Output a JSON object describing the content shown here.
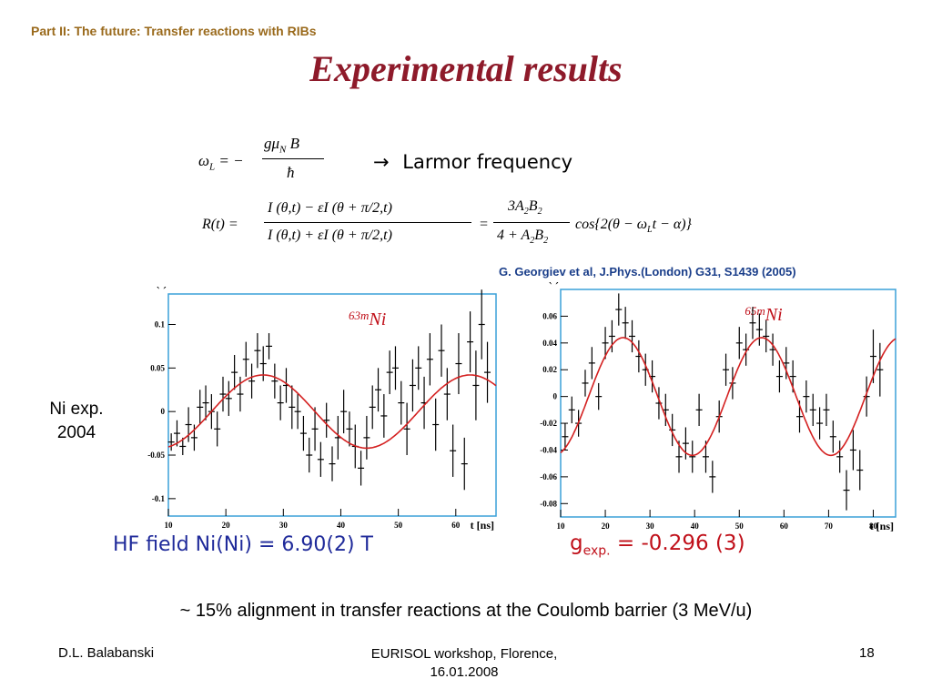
{
  "header": {
    "part_title": "Part II: The future: Transfer reactions with RIBs",
    "title": "Experimental results"
  },
  "formulas": {
    "larmor_label": "Larmor frequency",
    "larmor_arrow": "→"
  },
  "reference": "G. Georgiev et al, J.Phys.(London) G31, S1439 (2005)",
  "side_note": {
    "line1": "Ni exp.",
    "line2": "2004"
  },
  "hf_field": "HF field Ni(Ni) = 6.90(2) T",
  "g_exp": {
    "symbol": "g",
    "subscript": "exp.",
    "value": "= -0.296 (3)"
  },
  "conclusion": "~ 15% alignment in transfer reactions at the Coulomb barrier (3 MeV/u)",
  "footer": {
    "author": "D.L. Balabanski",
    "event_line1": "EURISOL workshop, Florence,",
    "event_line2": "16.01.2008",
    "page": "18"
  },
  "colors": {
    "title": "#8e1a2a",
    "part_title": "#9a6a1c",
    "fit_curve": "#d42020",
    "frame": "#3aa0d8",
    "reference": "#1a3e8a"
  },
  "chart_data": [
    {
      "type": "scatter",
      "isotope_mass": "63m",
      "isotope_element": "Ni",
      "ylabel": "R(t)",
      "xlabel": "t [ns]",
      "xlim": [
        10,
        67
      ],
      "ylim": [
        -0.12,
        0.135
      ],
      "x_ticks": [
        10,
        20,
        30,
        40,
        50,
        60
      ],
      "y_ticks": [
        -0.1,
        -0.05,
        0,
        0.05,
        0.1
      ],
      "y_tick_labels": [
        "-0.1",
        "-0.05",
        "0",
        "0.05",
        "0.1"
      ],
      "fit": {
        "amplitude": 0.042,
        "period_ns": 36,
        "peak_ns": 26.5
      },
      "points": [
        {
          "x": 10.5,
          "y": -0.035,
          "e": 0.01
        },
        {
          "x": 11.5,
          "y": -0.025,
          "e": 0.015
        },
        {
          "x": 12.5,
          "y": -0.04,
          "e": 0.01
        },
        {
          "x": 13.5,
          "y": -0.015,
          "e": 0.02
        },
        {
          "x": 14.5,
          "y": -0.03,
          "e": 0.015
        },
        {
          "x": 15.5,
          "y": 0.005,
          "e": 0.02
        },
        {
          "x": 16.5,
          "y": 0.01,
          "e": 0.02
        },
        {
          "x": 17.5,
          "y": 0.0,
          "e": 0.02
        },
        {
          "x": 18.5,
          "y": -0.02,
          "e": 0.02
        },
        {
          "x": 19.5,
          "y": 0.02,
          "e": 0.02
        },
        {
          "x": 20.5,
          "y": 0.015,
          "e": 0.02
        },
        {
          "x": 21.5,
          "y": 0.045,
          "e": 0.02
        },
        {
          "x": 22.5,
          "y": 0.02,
          "e": 0.02
        },
        {
          "x": 23.5,
          "y": 0.06,
          "e": 0.02
        },
        {
          "x": 24.5,
          "y": 0.035,
          "e": 0.02
        },
        {
          "x": 25.5,
          "y": 0.07,
          "e": 0.02
        },
        {
          "x": 26.5,
          "y": 0.055,
          "e": 0.02
        },
        {
          "x": 27.5,
          "y": 0.075,
          "e": 0.015
        },
        {
          "x": 28.5,
          "y": 0.035,
          "e": 0.02
        },
        {
          "x": 29.5,
          "y": 0.01,
          "e": 0.02
        },
        {
          "x": 30.5,
          "y": 0.03,
          "e": 0.02
        },
        {
          "x": 31.5,
          "y": 0.005,
          "e": 0.025
        },
        {
          "x": 32.5,
          "y": 0.0,
          "e": 0.02
        },
        {
          "x": 33.5,
          "y": -0.025,
          "e": 0.02
        },
        {
          "x": 34.5,
          "y": -0.05,
          "e": 0.02
        },
        {
          "x": 35.5,
          "y": -0.02,
          "e": 0.025
        },
        {
          "x": 36.5,
          "y": -0.055,
          "e": 0.02
        },
        {
          "x": 37.5,
          "y": -0.01,
          "e": 0.02
        },
        {
          "x": 38.5,
          "y": -0.06,
          "e": 0.02
        },
        {
          "x": 39.5,
          "y": -0.03,
          "e": 0.025
        },
        {
          "x": 40.5,
          "y": 0.0,
          "e": 0.025
        },
        {
          "x": 41.5,
          "y": -0.02,
          "e": 0.02
        },
        {
          "x": 42.5,
          "y": -0.04,
          "e": 0.025
        },
        {
          "x": 43.5,
          "y": -0.065,
          "e": 0.02
        },
        {
          "x": 44.5,
          "y": -0.03,
          "e": 0.025
        },
        {
          "x": 45.5,
          "y": 0.005,
          "e": 0.025
        },
        {
          "x": 46.5,
          "y": 0.025,
          "e": 0.025
        },
        {
          "x": 47.5,
          "y": -0.005,
          "e": 0.025
        },
        {
          "x": 48.5,
          "y": 0.045,
          "e": 0.025
        },
        {
          "x": 49.5,
          "y": 0.05,
          "e": 0.025
        },
        {
          "x": 50.5,
          "y": 0.01,
          "e": 0.025
        },
        {
          "x": 51.5,
          "y": -0.02,
          "e": 0.03
        },
        {
          "x": 52.5,
          "y": 0.03,
          "e": 0.03
        },
        {
          "x": 53.5,
          "y": 0.05,
          "e": 0.025
        },
        {
          "x": 54.5,
          "y": 0.01,
          "e": 0.03
        },
        {
          "x": 55.5,
          "y": 0.06,
          "e": 0.03
        },
        {
          "x": 56.5,
          "y": -0.015,
          "e": 0.03
        },
        {
          "x": 57.5,
          "y": 0.07,
          "e": 0.03
        },
        {
          "x": 58.5,
          "y": 0.02,
          "e": 0.03
        },
        {
          "x": 59.5,
          "y": -0.045,
          "e": 0.03
        },
        {
          "x": 60.5,
          "y": 0.055,
          "e": 0.035
        },
        {
          "x": 61.5,
          "y": -0.06,
          "e": 0.03
        },
        {
          "x": 62.5,
          "y": 0.08,
          "e": 0.035
        },
        {
          "x": 63.5,
          "y": 0.03,
          "e": 0.04
        },
        {
          "x": 64.5,
          "y": 0.1,
          "e": 0.04
        },
        {
          "x": 65.5,
          "y": 0.045,
          "e": 0.035
        }
      ]
    },
    {
      "type": "scatter",
      "isotope_mass": "65m",
      "isotope_element": "Ni",
      "ylabel": "R(t)",
      "xlabel": "t [ns]",
      "xlim": [
        10,
        85
      ],
      "ylim": [
        -0.09,
        0.08
      ],
      "x_ticks": [
        10,
        20,
        30,
        40,
        50,
        60,
        70,
        80
      ],
      "y_ticks": [
        -0.08,
        -0.06,
        -0.04,
        -0.02,
        0,
        0.02,
        0.04,
        0.06
      ],
      "y_tick_labels": [
        "-0.08",
        "-0.06",
        "-0.04",
        "-0.02",
        "0",
        "0.02",
        "0.04",
        "0.06"
      ],
      "fit": {
        "amplitude": 0.044,
        "period_ns": 31,
        "peak_ns": 24
      },
      "points": [
        {
          "x": 11,
          "y": -0.03,
          "e": 0.01
        },
        {
          "x": 12.5,
          "y": -0.01,
          "e": 0.01
        },
        {
          "x": 14,
          "y": -0.02,
          "e": 0.01
        },
        {
          "x": 15.5,
          "y": 0.01,
          "e": 0.01
        },
        {
          "x": 17,
          "y": 0.025,
          "e": 0.012
        },
        {
          "x": 18.5,
          "y": 0.0,
          "e": 0.01
        },
        {
          "x": 20,
          "y": 0.04,
          "e": 0.012
        },
        {
          "x": 21.5,
          "y": 0.045,
          "e": 0.012
        },
        {
          "x": 23,
          "y": 0.065,
          "e": 0.012
        },
        {
          "x": 24.5,
          "y": 0.055,
          "e": 0.012
        },
        {
          "x": 26,
          "y": 0.045,
          "e": 0.012
        },
        {
          "x": 27.5,
          "y": 0.03,
          "e": 0.012
        },
        {
          "x": 29,
          "y": 0.02,
          "e": 0.012
        },
        {
          "x": 30.5,
          "y": 0.015,
          "e": 0.012
        },
        {
          "x": 32,
          "y": -0.005,
          "e": 0.012
        },
        {
          "x": 33.5,
          "y": -0.01,
          "e": 0.012
        },
        {
          "x": 35,
          "y": -0.025,
          "e": 0.012
        },
        {
          "x": 36.5,
          "y": -0.045,
          "e": 0.012
        },
        {
          "x": 38,
          "y": -0.035,
          "e": 0.012
        },
        {
          "x": 39.5,
          "y": -0.045,
          "e": 0.012
        },
        {
          "x": 41,
          "y": -0.01,
          "e": 0.012
        },
        {
          "x": 42.5,
          "y": -0.045,
          "e": 0.012
        },
        {
          "x": 44,
          "y": -0.06,
          "e": 0.012
        },
        {
          "x": 45.5,
          "y": -0.015,
          "e": 0.012
        },
        {
          "x": 47,
          "y": 0.02,
          "e": 0.012
        },
        {
          "x": 48.5,
          "y": 0.01,
          "e": 0.012
        },
        {
          "x": 50,
          "y": 0.04,
          "e": 0.012
        },
        {
          "x": 51.5,
          "y": 0.035,
          "e": 0.012
        },
        {
          "x": 53,
          "y": 0.055,
          "e": 0.012
        },
        {
          "x": 54.5,
          "y": 0.05,
          "e": 0.012
        },
        {
          "x": 56,
          "y": 0.045,
          "e": 0.012
        },
        {
          "x": 57.5,
          "y": 0.035,
          "e": 0.012
        },
        {
          "x": 59,
          "y": 0.015,
          "e": 0.012
        },
        {
          "x": 60.5,
          "y": 0.025,
          "e": 0.012
        },
        {
          "x": 62,
          "y": 0.015,
          "e": 0.012
        },
        {
          "x": 63.5,
          "y": -0.015,
          "e": 0.012
        },
        {
          "x": 65,
          "y": 0.0,
          "e": 0.012
        },
        {
          "x": 66.5,
          "y": -0.01,
          "e": 0.012
        },
        {
          "x": 68,
          "y": -0.02,
          "e": 0.012
        },
        {
          "x": 69.5,
          "y": -0.01,
          "e": 0.012
        },
        {
          "x": 71,
          "y": -0.03,
          "e": 0.012
        },
        {
          "x": 72.5,
          "y": -0.045,
          "e": 0.012
        },
        {
          "x": 74,
          "y": -0.07,
          "e": 0.015
        },
        {
          "x": 75.5,
          "y": -0.04,
          "e": 0.015
        },
        {
          "x": 77,
          "y": -0.055,
          "e": 0.015
        },
        {
          "x": 78.5,
          "y": 0.0,
          "e": 0.015
        },
        {
          "x": 80,
          "y": 0.03,
          "e": 0.02
        },
        {
          "x": 81.5,
          "y": 0.02,
          "e": 0.02
        }
      ]
    }
  ]
}
